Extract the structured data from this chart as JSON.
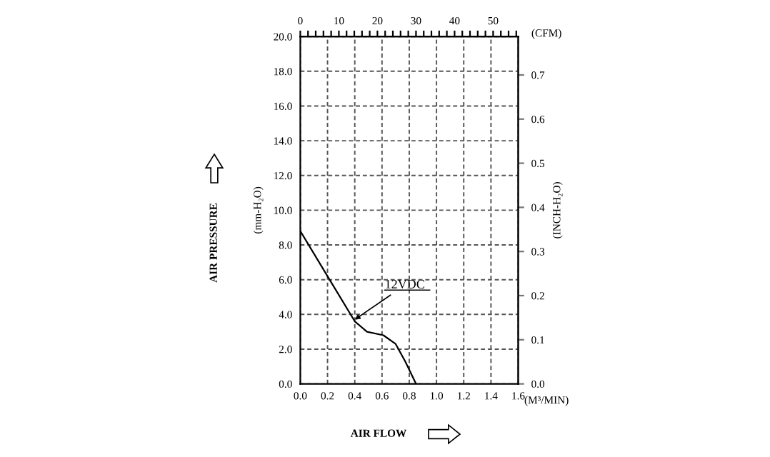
{
  "chart_data": {
    "type": "line",
    "x": [
      0,
      0.2,
      0.4,
      0.49,
      0.61,
      0.7,
      0.77,
      0.85
    ],
    "series": [
      {
        "color": "#000000",
        "values": [
          8.8,
          6.2,
          3.6,
          3.0,
          2.8,
          2.3,
          1.3,
          0
        ]
      }
    ],
    "xlim": [
      0,
      1.6
    ],
    "xticks": [
      {
        "value": 0,
        "label": "0.0"
      },
      0.2,
      0.4,
      0.6,
      0.8,
      {
        "value": 1,
        "label": "1.0"
      },
      1.2,
      1.4,
      1.6
    ],
    "ylim": [
      0,
      20
    ],
    "yticks": [
      {
        "value": 0,
        "label": "0.0"
      },
      {
        "value": 2,
        "label": "2.0"
      },
      {
        "value": 4,
        "label": "4.0"
      },
      {
        "value": 6,
        "label": "6.0"
      },
      {
        "value": 8,
        "label": "8.0"
      },
      {
        "value": 10,
        "label": "10.0"
      },
      {
        "value": 12,
        "label": "12.0"
      },
      {
        "value": 14,
        "label": "14.0"
      },
      {
        "value": 16,
        "label": "16.0"
      },
      {
        "value": 18,
        "label": "18.0"
      },
      {
        "value": 20,
        "label": "20.0"
      }
    ],
    "y2lim": [
      0,
      0.787
    ],
    "y2ticks": [
      {
        "value": 0,
        "label": "0.0"
      },
      0.1,
      0.2,
      0.3,
      0.4,
      0.5,
      0.6,
      0.7
    ],
    "x2lim": [
      0,
      56.5
    ],
    "x2ticks": [
      0,
      {
        "value": 2,
        "label": null
      },
      {
        "value": 4,
        "label": null
      },
      {
        "value": 6,
        "label": null
      },
      {
        "value": 8,
        "label": null
      },
      10,
      {
        "value": 12,
        "label": null
      },
      {
        "value": 14,
        "label": null
      },
      {
        "value": 16,
        "label": null
      },
      {
        "value": 18,
        "label": null
      },
      20,
      {
        "value": 22,
        "label": null
      },
      {
        "value": 24,
        "label": null
      },
      {
        "value": 26,
        "label": null
      },
      {
        "value": 28,
        "label": null
      },
      30,
      {
        "value": 32,
        "label": null
      },
      {
        "value": 34,
        "label": null
      },
      {
        "value": 36,
        "label": null
      },
      {
        "value": 38,
        "label": null
      },
      40,
      {
        "value": 42,
        "label": null
      },
      {
        "value": 44,
        "label": null
      },
      {
        "value": 46,
        "label": null
      },
      {
        "value": 48,
        "label": null
      },
      50,
      {
        "value": 52,
        "label": null
      },
      {
        "value": 54,
        "label": null
      },
      {
        "value": 56,
        "label": null
      }
    ],
    "xlabel": "(M³/MIN)",
    "x2label": "(CFM)",
    "ylabel": "(mm-H₂O)",
    "y2label": "(INCH-H₂O)",
    "annotations": [
      "AIR PRESSURE",
      "AIR FLOW",
      {
        "text": "12VDC",
        "x": 0.4,
        "y": 3.7
      }
    ],
    "grid": true,
    "line_style": "solid",
    "marker": "none"
  }
}
